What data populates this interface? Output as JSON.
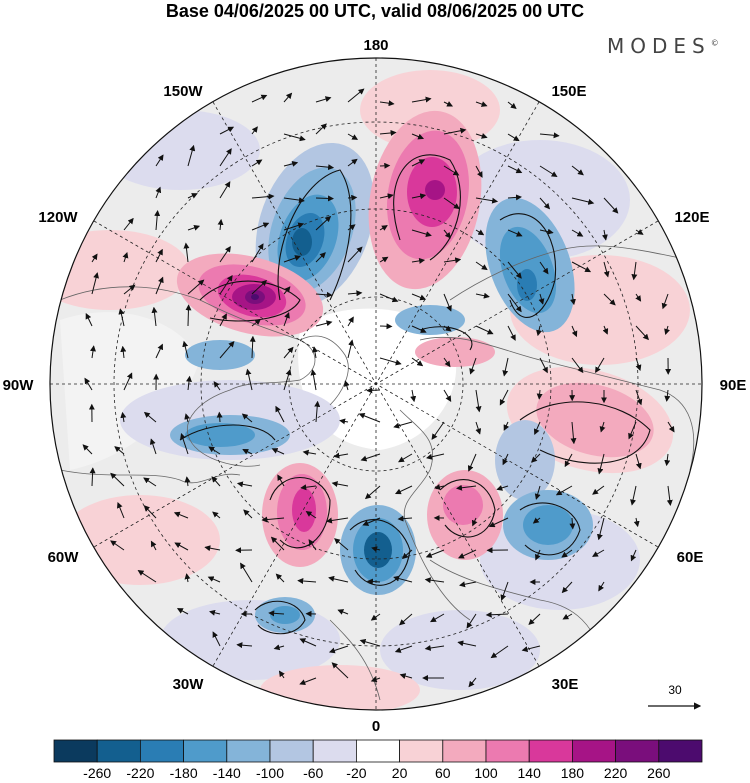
{
  "title": "Base 04/06/2025 00 UTC, valid 08/06/2025 00 UTC",
  "brand": "MODES",
  "brand_mark": "©",
  "longitude_labels": {
    "top": "180",
    "top_left": "150W",
    "top_right": "150E",
    "upper_left": "120W",
    "upper_right": "120E",
    "left": "90W",
    "right": "90E",
    "lower_left": "60W",
    "lower_right": "60E",
    "bottom_left": "30W",
    "bottom_right": "30E",
    "bottom": "0"
  },
  "reference_vector": {
    "label": "30"
  },
  "colorbar": {
    "ticks": [
      "-260",
      "-220",
      "-180",
      "-140",
      "-100",
      "-60",
      "-20",
      "20",
      "60",
      "100",
      "140",
      "180",
      "220",
      "260"
    ],
    "colors": [
      "#0b3a5e",
      "#135f8f",
      "#2a7db4",
      "#4f9bcb",
      "#84b4d9",
      "#b3c6e2",
      "#dcdcee",
      "#ffffff",
      "#f8d2d6",
      "#f3aabe",
      "#ec7ab0",
      "#d9389b",
      "#a61486",
      "#7a0e7c",
      "#4c0b6e"
    ]
  },
  "colors": {
    "land_fill": "#ebebeb",
    "coast": "#666666",
    "grid": "#222222"
  },
  "icons": {
    "wind_vector": "arrow-icon"
  }
}
